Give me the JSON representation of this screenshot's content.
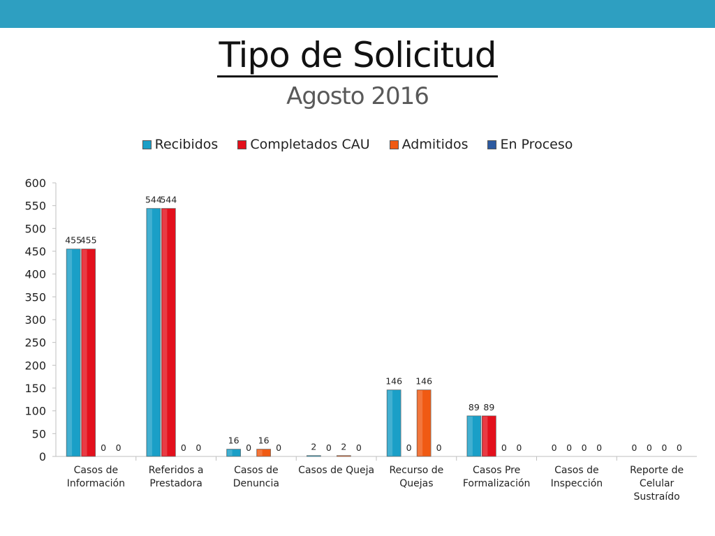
{
  "slide": {
    "title": "Tipo de Solicitud",
    "subtitle": "Agosto 2016"
  },
  "colors": {
    "header_bar": "#2e9fc1"
  },
  "chart_data": {
    "type": "bar",
    "categories": [
      [
        "Casos de",
        "Información"
      ],
      [
        "Referidos a",
        "Prestadora"
      ],
      [
        "Casos de",
        "Denuncia"
      ],
      [
        "Casos de Queja"
      ],
      [
        "Recurso de",
        "Quejas"
      ],
      [
        "Casos Pre",
        "Formalización"
      ],
      [
        "Casos de",
        "Inspección"
      ],
      [
        "Reporte de",
        "Celular",
        "Sustraído"
      ]
    ],
    "series": [
      {
        "name": "Recibidos",
        "color": "#1a9fc7",
        "values": [
          455,
          544,
          16,
          2,
          146,
          89,
          0,
          0
        ]
      },
      {
        "name": "Completados CAU",
        "color": "#e3101c",
        "values": [
          455,
          544,
          0,
          0,
          0,
          89,
          0,
          0
        ]
      },
      {
        "name": "Admitidos",
        "color": "#f05a13",
        "values": [
          0,
          0,
          16,
          2,
          146,
          0,
          0,
          0
        ]
      },
      {
        "name": "En Proceso",
        "color": "#2d5aa0",
        "values": [
          0,
          0,
          0,
          0,
          0,
          0,
          0,
          0
        ]
      }
    ],
    "ylim": [
      0,
      600
    ],
    "yticks": [
      0,
      50,
      100,
      150,
      200,
      250,
      300,
      350,
      400,
      450,
      500,
      550,
      600
    ],
    "legend_position": "top",
    "grid": false
  }
}
